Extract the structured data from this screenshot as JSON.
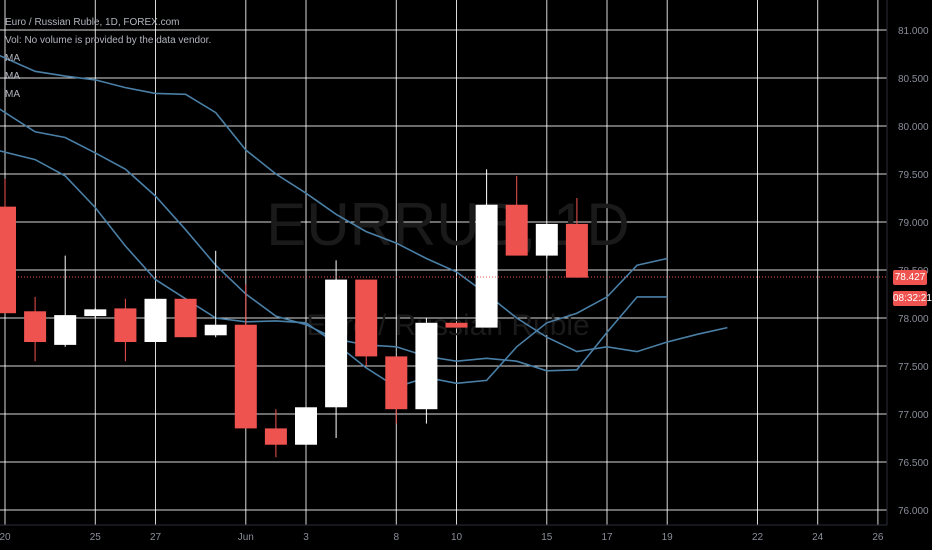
{
  "legend": {
    "title": "Euro / Russian Ruble, 1D, FOREX.com",
    "volume_note": "Vol: No volume is provided by the data vendor.",
    "ma_labels": [
      "MA",
      "MA",
      "MA"
    ]
  },
  "watermark": {
    "symbol": "EURRUB, 1D",
    "name": "Euro / Russian Ruble"
  },
  "price_tag": {
    "value": "78.427",
    "countdown": "08:32:21"
  },
  "colors": {
    "background": "#000000",
    "grid": "#ffffff",
    "up": "#ffffff",
    "down": "#ef5350",
    "ma": "#4a7fa6",
    "axis_text": "#8a8e99"
  },
  "chart_data": {
    "type": "candlestick",
    "y_axis": {
      "ticks": [
        "76.000",
        "76.500",
        "77.000",
        "77.500",
        "78.000",
        "78.500",
        "79.000",
        "79.500",
        "80.000",
        "80.500",
        "81.000"
      ],
      "ylim": [
        76.0,
        81.0
      ]
    },
    "x_axis": {
      "ticks": [
        "20",
        "25",
        "27",
        "Jun",
        "3",
        "8",
        "10",
        "15",
        "17",
        "19",
        "22",
        "24",
        "26"
      ]
    },
    "current_price": 78.427,
    "candles": [
      {
        "open": 79.16,
        "high": 79.45,
        "low": 78.05,
        "close": 78.05
      },
      {
        "open": 78.07,
        "high": 78.22,
        "low": 77.55,
        "close": 77.75
      },
      {
        "open": 77.72,
        "high": 78.65,
        "low": 77.7,
        "close": 78.03
      },
      {
        "open": 78.02,
        "high": 78.1,
        "low": 78.0,
        "close": 78.09
      },
      {
        "open": 78.1,
        "high": 78.2,
        "low": 77.55,
        "close": 77.75
      },
      {
        "open": 77.75,
        "high": 78.2,
        "low": 77.75,
        "close": 78.2
      },
      {
        "open": 78.2,
        "high": 78.2,
        "low": 77.8,
        "close": 77.8
      },
      {
        "open": 77.82,
        "high": 78.7,
        "low": 77.8,
        "close": 77.93
      },
      {
        "open": 77.93,
        "high": 78.35,
        "low": 76.85,
        "close": 76.85
      },
      {
        "open": 76.85,
        "high": 77.05,
        "low": 76.55,
        "close": 76.68
      },
      {
        "open": 76.68,
        "high": 77.07,
        "low": 76.68,
        "close": 77.07
      },
      {
        "open": 77.07,
        "high": 78.6,
        "low": 76.75,
        "close": 78.4
      },
      {
        "open": 78.4,
        "high": 78.4,
        "low": 77.5,
        "close": 77.6
      },
      {
        "open": 77.6,
        "high": 77.6,
        "low": 76.9,
        "close": 77.05
      },
      {
        "open": 77.05,
        "high": 78.0,
        "low": 76.9,
        "close": 77.95
      },
      {
        "open": 77.95,
        "high": 77.95,
        "low": 77.9,
        "close": 77.9
      },
      {
        "open": 77.9,
        "high": 79.55,
        "low": 77.9,
        "close": 79.18
      },
      {
        "open": 79.18,
        "high": 79.48,
        "low": 78.65,
        "close": 78.65
      },
      {
        "open": 78.65,
        "high": 78.98,
        "low": 78.62,
        "close": 78.98
      },
      {
        "open": 78.98,
        "high": 79.25,
        "low": 78.42,
        "close": 78.42
      }
    ],
    "moving_averages": [
      {
        "name": "MA",
        "values": [
          [
            -0.3,
            80.75
          ],
          [
            1.0,
            80.57
          ],
          [
            2.0,
            80.52
          ],
          [
            3.0,
            80.48
          ],
          [
            4.0,
            80.4
          ],
          [
            5.0,
            80.34
          ],
          [
            6.0,
            80.33
          ],
          [
            7.0,
            80.14
          ],
          [
            8.0,
            79.75
          ],
          [
            9.0,
            79.5
          ],
          [
            10.0,
            79.3
          ],
          [
            11.0,
            79.08
          ],
          [
            12.0,
            78.9
          ],
          [
            13.0,
            78.78
          ],
          [
            14.0,
            78.62
          ],
          [
            15.0,
            78.48
          ],
          [
            16.0,
            78.25
          ],
          [
            17.0,
            78.0
          ],
          [
            18.0,
            77.8
          ],
          [
            19.0,
            77.65
          ],
          [
            20.0,
            77.7
          ],
          [
            21.0,
            77.65
          ],
          [
            22.0,
            77.75
          ],
          [
            23.0,
            77.83
          ],
          [
            24.0,
            77.9
          ]
        ]
      },
      {
        "name": "MA",
        "values": [
          [
            -0.3,
            80.2
          ],
          [
            1.0,
            79.94
          ],
          [
            2.0,
            79.88
          ],
          [
            3.0,
            79.72
          ],
          [
            4.0,
            79.55
          ],
          [
            5.0,
            79.27
          ],
          [
            6.0,
            78.92
          ],
          [
            7.0,
            78.55
          ],
          [
            8.0,
            78.25
          ],
          [
            9.0,
            78.02
          ],
          [
            10.0,
            77.93
          ],
          [
            11.0,
            77.78
          ],
          [
            12.0,
            77.72
          ],
          [
            13.0,
            77.7
          ],
          [
            14.0,
            77.6
          ],
          [
            15.0,
            77.55
          ],
          [
            16.0,
            77.58
          ],
          [
            17.0,
            77.55
          ],
          [
            18.0,
            77.45
          ],
          [
            19.0,
            77.46
          ],
          [
            20.0,
            77.85
          ],
          [
            21.0,
            78.22
          ],
          [
            22.0,
            78.22
          ]
        ]
      },
      {
        "name": "MA",
        "values": [
          [
            -0.3,
            79.75
          ],
          [
            1.0,
            79.65
          ],
          [
            2.0,
            79.48
          ],
          [
            3.0,
            79.15
          ],
          [
            4.0,
            78.75
          ],
          [
            5.0,
            78.4
          ],
          [
            6.0,
            78.2
          ],
          [
            7.0,
            78.0
          ],
          [
            8.0,
            77.96
          ],
          [
            9.0,
            77.97
          ],
          [
            10.0,
            77.95
          ],
          [
            11.0,
            77.73
          ],
          [
            12.0,
            77.48
          ],
          [
            13.0,
            77.28
          ],
          [
            14.0,
            77.38
          ],
          [
            15.0,
            77.32
          ],
          [
            16.0,
            77.35
          ],
          [
            17.0,
            77.7
          ],
          [
            18.0,
            77.95
          ],
          [
            19.0,
            78.05
          ],
          [
            20.0,
            78.22
          ],
          [
            21.0,
            78.55
          ],
          [
            22.0,
            78.62
          ]
        ]
      }
    ]
  }
}
